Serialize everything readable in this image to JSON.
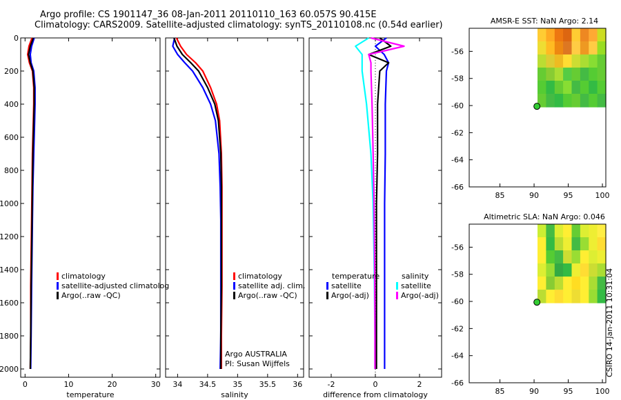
{
  "header": {
    "title_line1": "Argo profile: CS 1901147_36 08-Jan-2011 20110110_163 60.057S 90.415E",
    "title_line2": "Climatology: CARS2009. Satellite-adjusted climatology: synTS_20110108.nc (0.54d earlier)"
  },
  "footer": {
    "stamp": "CSIRO 14-Jan-2011 10:31:04"
  },
  "colors": {
    "climatology": "#ff0000",
    "satellite": "#0000ff",
    "argo": "#000000",
    "sal_satellite": "#00ffff",
    "sal_argo": "#ff00ff",
    "marker": "#33cc33"
  },
  "chart_data": [
    {
      "id": "temperature",
      "type": "line",
      "xlabel": "temperature",
      "xlim": [
        -1,
        31
      ],
      "ylim": [
        2050,
        0
      ],
      "xticks": [
        0,
        10,
        20,
        30
      ],
      "xtick_labels": [
        "0",
        "10",
        "20",
        "30"
      ],
      "yticks": [
        0,
        200,
        400,
        600,
        800,
        1000,
        1200,
        1400,
        1600,
        1800,
        2000
      ],
      "ytick_labels": [
        "0",
        "200",
        "400",
        "600",
        "800",
        "1000",
        "1200",
        "1400",
        "1600",
        "1800",
        "2000"
      ],
      "legend": [
        "climatology",
        "satellite-adjusted climatolog",
        "Argo(..raw -QC)"
      ],
      "series": [
        {
          "name": "climatology",
          "color": "#ff0000",
          "x": [
            1.6,
            0.9,
            0.6,
            1.0,
            1.7,
            2.0,
            2.0,
            1.9,
            1.7,
            1.6,
            1.5,
            1.4,
            1.3,
            1.3,
            1.2
          ],
          "y": [
            0,
            50,
            100,
            150,
            200,
            300,
            400,
            500,
            700,
            900,
            1100,
            1300,
            1500,
            1800,
            2000
          ]
        },
        {
          "name": "satellite-adjusted climatology",
          "color": "#0000ff",
          "x": [
            2.1,
            1.5,
            1.2,
            1.4,
            2.0,
            2.3,
            2.3,
            2.2,
            2.0,
            1.8,
            1.7,
            1.6,
            1.5,
            1.4,
            1.3
          ],
          "y": [
            0,
            50,
            100,
            150,
            200,
            300,
            400,
            500,
            700,
            900,
            1100,
            1300,
            1500,
            1800,
            2000
          ]
        },
        {
          "name": "Argo(..raw -QC)",
          "color": "#000000",
          "x": [
            1.9,
            1.2,
            0.8,
            1.2,
            1.8,
            2.1,
            2.1,
            2.0,
            1.8,
            1.7,
            1.6,
            1.5,
            1.4,
            1.3,
            1.2
          ],
          "y": [
            0,
            50,
            100,
            150,
            200,
            300,
            400,
            500,
            700,
            900,
            1100,
            1300,
            1500,
            1800,
            2000
          ]
        }
      ]
    },
    {
      "id": "salinity",
      "type": "line",
      "xlabel": "salinity",
      "xlim": [
        33.8,
        36.1
      ],
      "ylim": [
        2050,
        0
      ],
      "xticks": [
        34,
        34.5,
        35,
        35.5,
        36
      ],
      "xtick_labels": [
        "34",
        "34.5",
        "35",
        "35.5",
        "36"
      ],
      "legend": [
        "climatology",
        "satellite adj. clim.",
        "Argo(..raw -QC)"
      ],
      "annotation": [
        "Argo AUSTRALIA",
        "PI: Susan Wijffels"
      ],
      "series": [
        {
          "name": "climatology",
          "color": "#ff0000",
          "x": [
            33.98,
            34.05,
            34.15,
            34.3,
            34.42,
            34.55,
            34.65,
            34.7,
            34.73,
            34.74,
            34.74,
            34.74,
            34.73,
            34.73
          ],
          "y": [
            0,
            50,
            100,
            150,
            200,
            300,
            400,
            500,
            700,
            900,
            1100,
            1500,
            1800,
            2000
          ]
        },
        {
          "name": "satellite adj. clim.",
          "color": "#0000ff",
          "x": [
            33.95,
            33.92,
            34.0,
            34.12,
            34.25,
            34.42,
            34.55,
            34.63,
            34.69,
            34.71,
            34.72,
            34.72,
            34.72,
            34.71
          ],
          "y": [
            0,
            50,
            100,
            150,
            200,
            300,
            400,
            500,
            700,
            900,
            1100,
            1500,
            1800,
            2000
          ]
        },
        {
          "name": "Argo(..raw -QC)",
          "color": "#000000",
          "x": [
            33.94,
            33.99,
            34.08,
            34.22,
            34.35,
            34.5,
            34.62,
            34.68,
            34.72,
            34.73,
            34.73,
            34.73,
            34.72,
            34.72
          ],
          "y": [
            0,
            50,
            100,
            150,
            200,
            300,
            400,
            500,
            700,
            900,
            1100,
            1500,
            1800,
            2000
          ]
        }
      ]
    },
    {
      "id": "difference",
      "type": "line",
      "xlabel": "difference from climatology",
      "xlim": [
        -3,
        3
      ],
      "ylim": [
        2050,
        0
      ],
      "xticks": [
        -2,
        0,
        2
      ],
      "xtick_labels": [
        "-2",
        "0",
        "2"
      ],
      "legend_groups": [
        {
          "heading": "temperature",
          "items": [
            "satellite",
            "Argo(-adj)"
          ]
        },
        {
          "heading": "salinity",
          "items": [
            "satellite",
            "Argo(-adj)"
          ]
        }
      ],
      "series": [
        {
          "name": "temperature satellite",
          "color": "#0000ff",
          "x": [
            0.5,
            0.0,
            0.4,
            0.6,
            0.5,
            0.45,
            0.45,
            0.42,
            0.42,
            0.42,
            0.42
          ],
          "y": [
            0,
            50,
            100,
            150,
            200,
            400,
            700,
            1000,
            1400,
            1800,
            2000
          ]
        },
        {
          "name": "temperature Argo(-adj)",
          "color": "#000000",
          "x": [
            0.2,
            0.7,
            -0.3,
            0.6,
            0.2,
            0.1,
            0.1,
            0.05,
            0.05,
            0.05,
            0.05
          ],
          "y": [
            0,
            50,
            100,
            150,
            200,
            400,
            700,
            1000,
            1400,
            1800,
            2000
          ]
        },
        {
          "name": "salinity satellite",
          "color": "#00ffff",
          "x": [
            -0.3,
            -0.9,
            -0.6,
            -0.6,
            -0.6,
            -0.4,
            -0.2,
            -0.1,
            -0.05,
            -0.02,
            -0.02
          ],
          "y": [
            0,
            50,
            100,
            150,
            200,
            400,
            700,
            1000,
            1400,
            1800,
            2000
          ]
        },
        {
          "name": "salinity Argo(-adj)",
          "color": "#ff00ff",
          "x": [
            -0.2,
            1.3,
            -0.3,
            -0.2,
            -0.2,
            -0.15,
            -0.1,
            -0.06,
            -0.03,
            -0.02,
            -0.02
          ],
          "y": [
            0,
            50,
            100,
            150,
            200,
            400,
            700,
            1000,
            1400,
            1800,
            2000
          ]
        }
      ]
    },
    {
      "id": "amsr_sst",
      "type": "heatmap",
      "title": "AMSR-E SST: NaN Argo: 2.14",
      "xlim": [
        80.5,
        100.5
      ],
      "ylim": [
        -66,
        -54.3
      ],
      "xticks": [
        85,
        90,
        95,
        100
      ],
      "xtick_labels": [
        "85",
        "90",
        "95",
        "100"
      ],
      "yticks": [
        -56,
        -58,
        -60,
        -62,
        -64,
        -66
      ],
      "ytick_labels": [
        "-56",
        "-58",
        "-60",
        "-62",
        "-64",
        "-66"
      ],
      "data_extent": {
        "lon": [
          90.5,
          100.5
        ],
        "lat": [
          -60.1,
          -54.3
        ]
      },
      "marker": {
        "lon": 90.415,
        "lat": -60.057
      },
      "grid": [
        [
          "#ffcc33",
          "#ffaa22",
          "#ee7711",
          "#dd6611",
          "#ffcc33",
          "#ee8822",
          "#ffaa33",
          "#ccdd22"
        ],
        [
          "#eedd33",
          "#ffbb22",
          "#ee8811",
          "#dd7722",
          "#ffcc44",
          "#ee9922",
          "#ffcc44",
          "#99dd22"
        ],
        [
          "#bbdd33",
          "#ddcc33",
          "#eebb22",
          "#ffdd33",
          "#ccdd33",
          "#aadd33",
          "#88dd33",
          "#66cc33"
        ],
        [
          "#66cc33",
          "#88cc33",
          "#aadd33",
          "#55cc44",
          "#66cc33",
          "#44bb44",
          "#55cc33",
          "#66cc33"
        ],
        [
          "#55cc33",
          "#33bb44",
          "#66cc33",
          "#88dd33",
          "#44bb44",
          "#55cc33",
          "#33bb44",
          "#55cc33"
        ],
        [
          "#66cc33",
          "#44bb44",
          "#33bb44",
          "#55cc33",
          "#66cc33",
          "#44bb44",
          "#55cc33",
          "#44bb44"
        ]
      ]
    },
    {
      "id": "altimetric_sla",
      "type": "heatmap",
      "title": "Altimetric SLA: NaN Argo: 0.046",
      "xlim": [
        80.5,
        100.5
      ],
      "ylim": [
        -66,
        -54.3
      ],
      "xticks": [
        85,
        90,
        95,
        100
      ],
      "xtick_labels": [
        "85",
        "90",
        "95",
        "100"
      ],
      "yticks": [
        -56,
        -58,
        -60,
        -62,
        -64,
        -66
      ],
      "ytick_labels": [
        "-56",
        "-58",
        "-60",
        "-62",
        "-64",
        "-66"
      ],
      "data_extent": {
        "lon": [
          90.5,
          100.5
        ],
        "lat": [
          -60.1,
          -54.3
        ]
      },
      "marker": {
        "lon": 90.415,
        "lat": -60.057
      },
      "grid": [
        [
          "#ccee33",
          "#44bb44",
          "#ddee33",
          "#ffee33",
          "#66cc33",
          "#ddee33",
          "#eeee33",
          "#ffee44"
        ],
        [
          "#ffee33",
          "#33bb44",
          "#bbdd33",
          "#eeee33",
          "#44bb44",
          "#99dd33",
          "#eeee33",
          "#ffdd33"
        ],
        [
          "#ffee33",
          "#55cc33",
          "#44bb44",
          "#ccdd33",
          "#99dd33",
          "#ffee33",
          "#ddee33",
          "#eeee33"
        ],
        [
          "#ddee33",
          "#99dd33",
          "#33aa44",
          "#33bb44",
          "#eeee33",
          "#ffdd33",
          "#ccdd33",
          "#aadd33"
        ],
        [
          "#ffee33",
          "#88cc33",
          "#bbdd33",
          "#ffee33",
          "#ffdd22",
          "#ffee33",
          "#aadd33",
          "#44bb44"
        ],
        [
          "#bbdd33",
          "#ffee33",
          "#ffdd33",
          "#ffee33",
          "#eedd33",
          "#ffee33",
          "#99dd33",
          "#33bb44"
        ]
      ]
    }
  ]
}
